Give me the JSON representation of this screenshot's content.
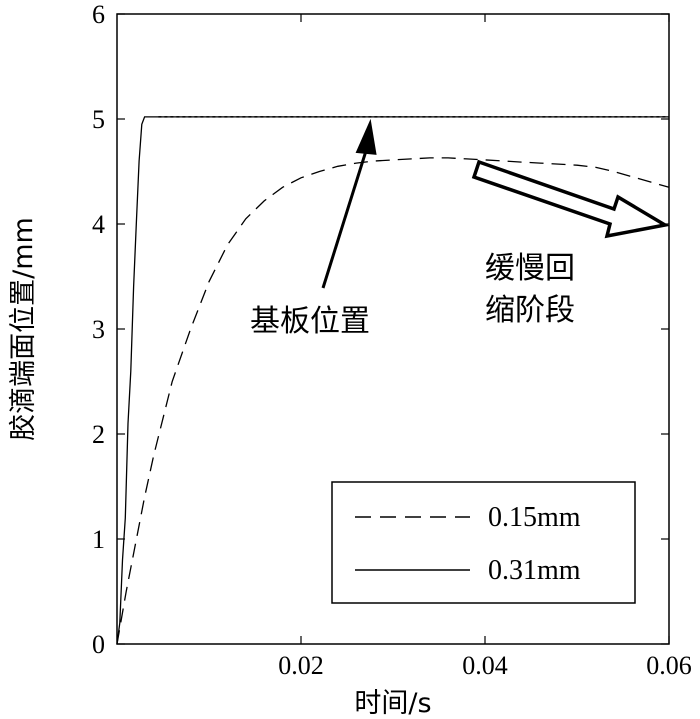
{
  "chart_data": {
    "type": "line",
    "title": "",
    "xlabel": "时间/s",
    "ylabel": "胶滴端面位置/mm",
    "xlim": [
      0,
      0.06
    ],
    "ylim": [
      0,
      6
    ],
    "x_ticks": [
      "0.02",
      "0.04",
      "0.06"
    ],
    "y_ticks": [
      "0",
      "1",
      "2",
      "3",
      "4",
      "5",
      "6"
    ],
    "grid": false,
    "legend_position": "bottom-right",
    "substrate_level": 5.02,
    "series": [
      {
        "name": "0.15mm",
        "style": "dashed",
        "x": [
          0,
          0.001,
          0.002,
          0.003,
          0.004,
          0.005,
          0.006,
          0.008,
          0.01,
          0.012,
          0.014,
          0.016,
          0.018,
          0.02,
          0.022,
          0.024,
          0.026,
          0.028,
          0.03,
          0.032,
          0.034,
          0.036,
          0.038,
          0.04,
          0.042,
          0.044,
          0.046,
          0.048,
          0.05,
          0.052,
          0.054,
          0.056,
          0.058,
          0.06
        ],
        "y": [
          0,
          0.5,
          0.95,
          1.4,
          1.8,
          2.15,
          2.5,
          3.0,
          3.45,
          3.8,
          4.05,
          4.22,
          4.35,
          4.44,
          4.5,
          4.55,
          4.58,
          4.6,
          4.61,
          4.62,
          4.63,
          4.63,
          4.62,
          4.61,
          4.6,
          4.59,
          4.58,
          4.57,
          4.56,
          4.54,
          4.5,
          4.45,
          4.4,
          4.35
        ]
      },
      {
        "name": "0.31mm",
        "style": "solid",
        "x": [
          0,
          0.0003,
          0.0006,
          0.0009,
          0.0012,
          0.0015,
          0.0018,
          0.0021,
          0.0024,
          0.0027,
          0.003,
          0.06
        ],
        "y": [
          0,
          0.2,
          0.8,
          1.2,
          2.1,
          2.6,
          3.4,
          4.0,
          4.6,
          4.95,
          5.02,
          5.02
        ]
      }
    ],
    "annotations": [
      {
        "text": "基板位置",
        "points_to": {
          "x": 0.028,
          "y": 5.02
        }
      },
      {
        "lines": [
          "缓慢回",
          "缩阶段"
        ],
        "arrow_to": {
          "x": 0.06,
          "y": 4.0
        }
      }
    ]
  }
}
